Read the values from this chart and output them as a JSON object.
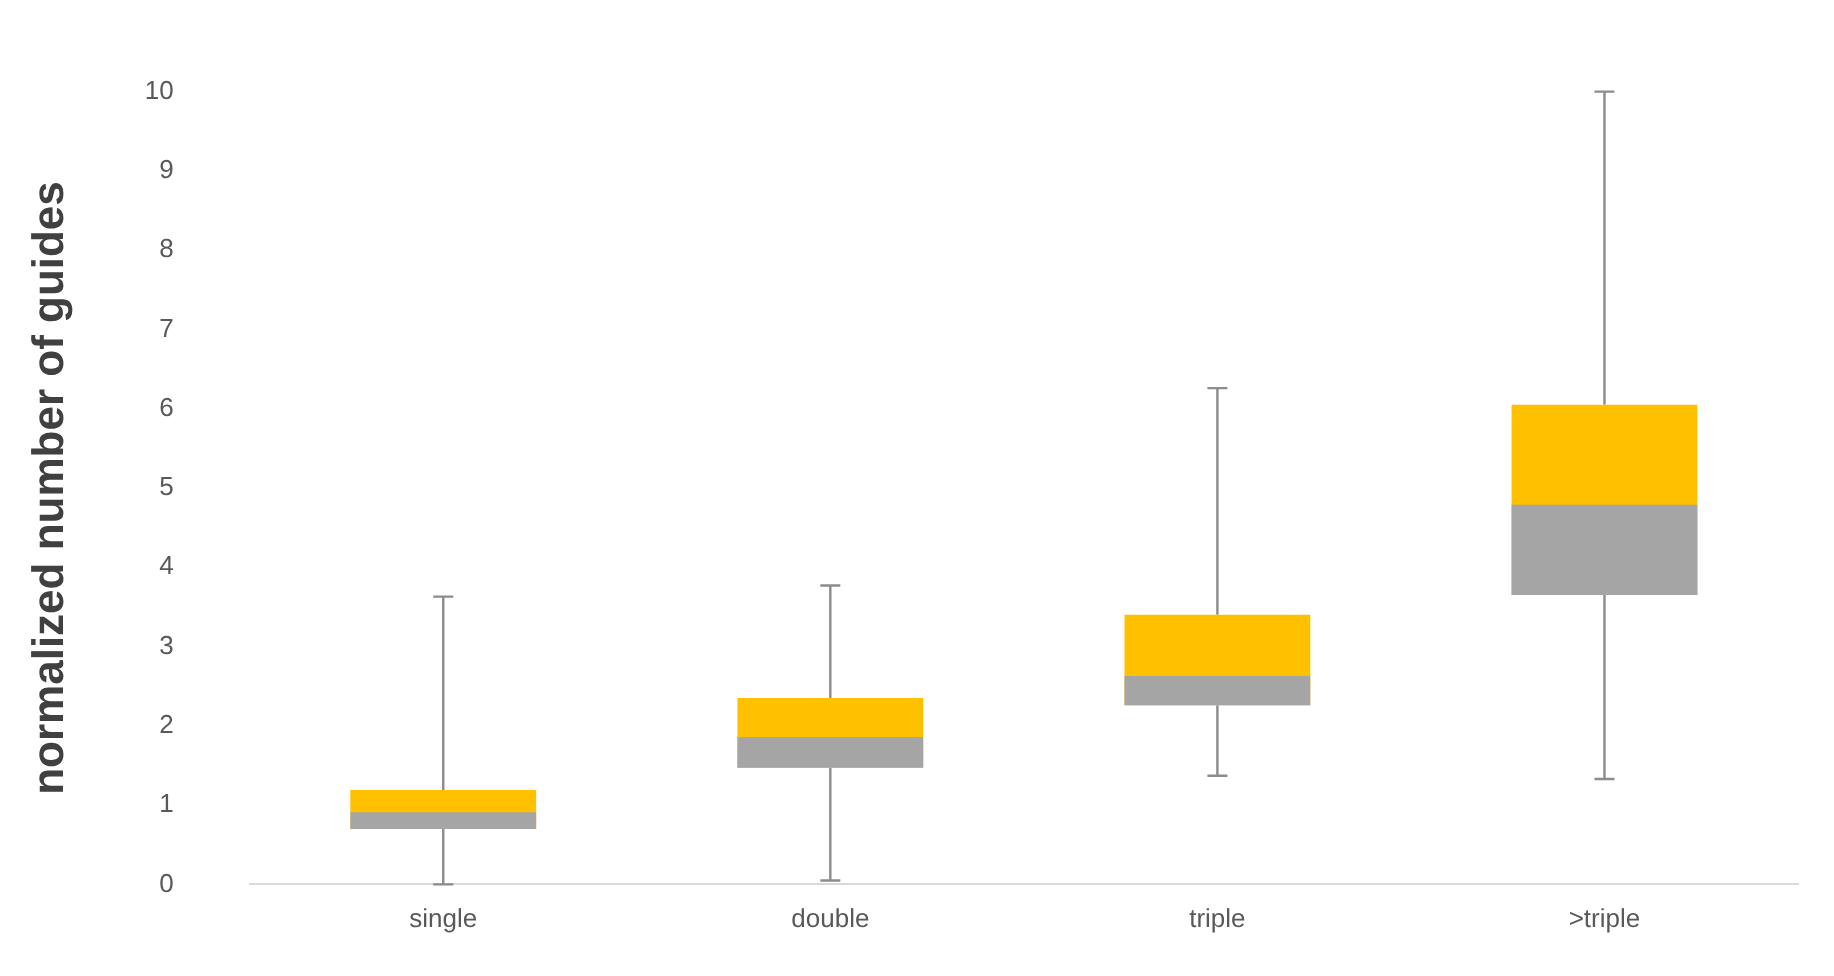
{
  "chart_data": {
    "type": "box",
    "ylabel": "normalized number of guides",
    "categories": [
      "single",
      "double",
      "triple",
      ">triple"
    ],
    "boxes": [
      {
        "low": 0,
        "q1": 0.7,
        "median": 0.91,
        "q3": 1.19,
        "high": 3.63
      },
      {
        "low": 0.05,
        "q1": 1.47,
        "median": 1.86,
        "q3": 2.35,
        "high": 3.77
      },
      {
        "low": 1.37,
        "q1": 2.26,
        "median": 2.63,
        "q3": 3.4,
        "high": 6.26
      },
      {
        "low": 1.33,
        "q1": 3.65,
        "median": 4.79,
        "q3": 6.05,
        "high": 10
      }
    ],
    "color": "#a5a5a5",
    "colors": [
      "#ffc000",
      "#ffc000",
      "#ffc000",
      "#ffc000"
    ],
    "ylim": [
      0,
      10
    ],
    "yticks": [
      0,
      1,
      2,
      3,
      4,
      5,
      6,
      7,
      8,
      9,
      10
    ],
    "grid": false,
    "legend": false
  }
}
